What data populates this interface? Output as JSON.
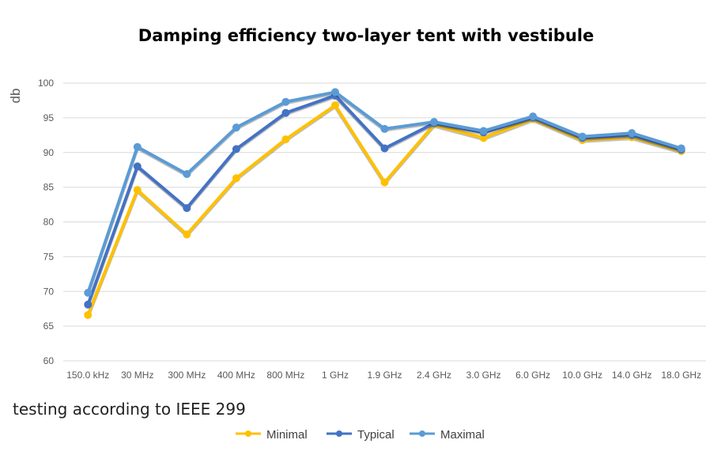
{
  "chart_data": {
    "type": "line",
    "title": "Damping efficiency two-layer tent with vestibule",
    "ylabel": "db",
    "xlabel": "",
    "ylim": [
      60,
      100
    ],
    "yticks": [
      60,
      65,
      70,
      75,
      80,
      85,
      90,
      95,
      100
    ],
    "grid": true,
    "legend_position": "bottom",
    "categories": [
      "150.0 kHz",
      "30 MHz",
      "300 MHz",
      "400 MHz",
      "800 MHz",
      "1 GHz",
      "1.9 GHz",
      "2.4 GHz",
      "3.0 GHz",
      "6.0 GHz",
      "10.0 GHz",
      "14.0 GHz",
      "18.0 GHz"
    ],
    "series": [
      {
        "name": "Minimal",
        "color": "#FFC000",
        "values": [
          66.6,
          84.6,
          78.2,
          86.3,
          91.9,
          96.8,
          85.7,
          94.0,
          92.1,
          94.8,
          91.8,
          92.2,
          90.2
        ]
      },
      {
        "name": "Typical",
        "color": "#4472C4",
        "values": [
          68.1,
          88.0,
          82.0,
          90.5,
          95.7,
          98.2,
          90.6,
          94.2,
          92.9,
          95.0,
          92.1,
          92.5,
          90.4
        ]
      },
      {
        "name": "Maximal",
        "color": "#5B9BD5",
        "values": [
          69.8,
          90.8,
          86.9,
          93.6,
          97.3,
          98.7,
          93.4,
          94.4,
          93.1,
          95.2,
          92.3,
          92.8,
          90.6
        ]
      }
    ],
    "annotation": "testing according to IEEE 299"
  }
}
